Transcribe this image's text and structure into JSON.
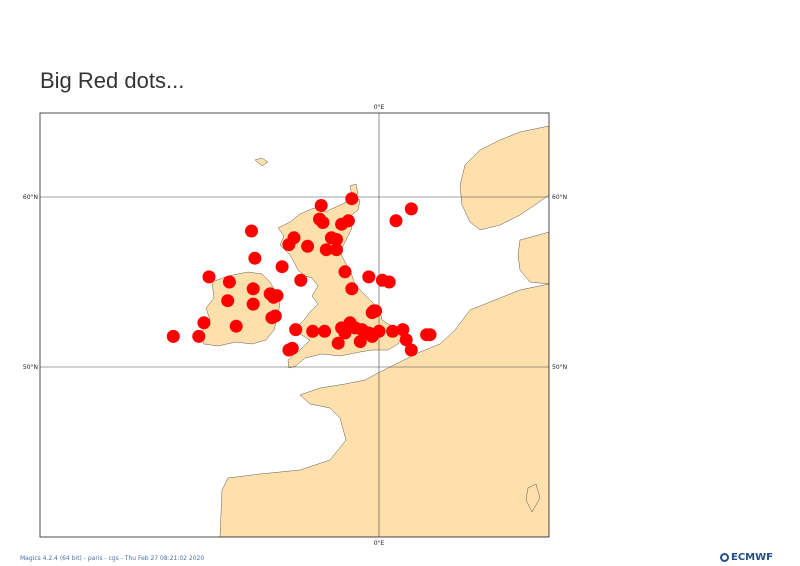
{
  "title": "Big Red dots...",
  "colors": {
    "land": "#fde0ac",
    "sea": "#ffffff",
    "coast": "#333333",
    "grid": "#444444",
    "dot": "#ff0000"
  },
  "axes": {
    "meridian_top": "0°E",
    "meridian_bottom": "0°E",
    "lat60_left": "60°N",
    "lat60_right": "60°N",
    "lat50_left": "50°N",
    "lat50_right": "50°N"
  },
  "extent": {
    "lon": [
      -20,
      10
    ],
    "lat": [
      45,
      70
    ]
  },
  "gridlines": {
    "lon": [
      0
    ],
    "lat": [
      50,
      60
    ]
  },
  "chart_data": {
    "type": "scatter",
    "title": "Big Red dots...",
    "marker": "filled-circle",
    "color": "#ff0000",
    "points": [
      {
        "lon": -3.4,
        "lat": 59.5
      },
      {
        "lon": -1.6,
        "lat": 59.9
      },
      {
        "lon": 1.9,
        "lat": 59.3
      },
      {
        "lon": 1.0,
        "lat": 58.6
      },
      {
        "lon": -7.5,
        "lat": 58.0
      },
      {
        "lon": -3.5,
        "lat": 58.7
      },
      {
        "lon": -3.3,
        "lat": 58.5
      },
      {
        "lon": -2.2,
        "lat": 58.4
      },
      {
        "lon": -1.8,
        "lat": 58.6
      },
      {
        "lon": -5.0,
        "lat": 57.6
      },
      {
        "lon": -2.8,
        "lat": 57.6
      },
      {
        "lon": -2.5,
        "lat": 57.5
      },
      {
        "lon": -5.3,
        "lat": 57.2
      },
      {
        "lon": -4.2,
        "lat": 57.1
      },
      {
        "lon": -3.1,
        "lat": 56.9
      },
      {
        "lon": -2.5,
        "lat": 56.9
      },
      {
        "lon": -7.3,
        "lat": 56.4
      },
      {
        "lon": -5.7,
        "lat": 55.9
      },
      {
        "lon": -2.0,
        "lat": 55.6
      },
      {
        "lon": -10.0,
        "lat": 55.3
      },
      {
        "lon": -8.8,
        "lat": 55.0
      },
      {
        "lon": -4.6,
        "lat": 55.1
      },
      {
        "lon": -0.6,
        "lat": 55.3
      },
      {
        "lon": 0.2,
        "lat": 55.1
      },
      {
        "lon": 0.6,
        "lat": 55.0
      },
      {
        "lon": -1.6,
        "lat": 54.6
      },
      {
        "lon": -7.4,
        "lat": 54.6
      },
      {
        "lon": -6.4,
        "lat": 54.3
      },
      {
        "lon": -6.0,
        "lat": 54.2
      },
      {
        "lon": -6.2,
        "lat": 54.1
      },
      {
        "lon": -8.9,
        "lat": 53.9
      },
      {
        "lon": -7.4,
        "lat": 53.7
      },
      {
        "lon": -0.4,
        "lat": 53.2
      },
      {
        "lon": -0.3,
        "lat": 53.3
      },
      {
        "lon": -0.2,
        "lat": 53.3
      },
      {
        "lon": -1.7,
        "lat": 52.6
      },
      {
        "lon": -6.3,
        "lat": 52.9
      },
      {
        "lon": -6.1,
        "lat": 53.0
      },
      {
        "lon": -10.3,
        "lat": 52.6
      },
      {
        "lon": -8.4,
        "lat": 52.4
      },
      {
        "lon": -2.2,
        "lat": 52.3
      },
      {
        "lon": -1.4,
        "lat": 52.3
      },
      {
        "lon": -2.0,
        "lat": 52.0
      },
      {
        "lon": -1.0,
        "lat": 52.2
      },
      {
        "lon": -0.6,
        "lat": 52.0
      },
      {
        "lon": 0.0,
        "lat": 52.1
      },
      {
        "lon": 0.8,
        "lat": 52.1
      },
      {
        "lon": 1.4,
        "lat": 52.2
      },
      {
        "lon": -4.9,
        "lat": 52.2
      },
      {
        "lon": -3.9,
        "lat": 52.1
      },
      {
        "lon": -3.2,
        "lat": 52.1
      },
      {
        "lon": -0.4,
        "lat": 51.8
      },
      {
        "lon": 2.8,
        "lat": 51.9
      },
      {
        "lon": 3.0,
        "lat": 51.9
      },
      {
        "lon": -12.1,
        "lat": 51.8
      },
      {
        "lon": -10.6,
        "lat": 51.8
      },
      {
        "lon": -1.1,
        "lat": 51.5
      },
      {
        "lon": -2.4,
        "lat": 51.4
      },
      {
        "lon": 1.6,
        "lat": 51.6
      },
      {
        "lon": -5.1,
        "lat": 51.1
      },
      {
        "lon": -5.3,
        "lat": 51.0
      },
      {
        "lon": 1.9,
        "lat": 51.0
      }
    ]
  },
  "footer": {
    "credit": "Magics 4.2.4 (64 bit) - paris - cgs - Thu Feb 27 08:21:02 2020",
    "logo": "ECMWF"
  }
}
